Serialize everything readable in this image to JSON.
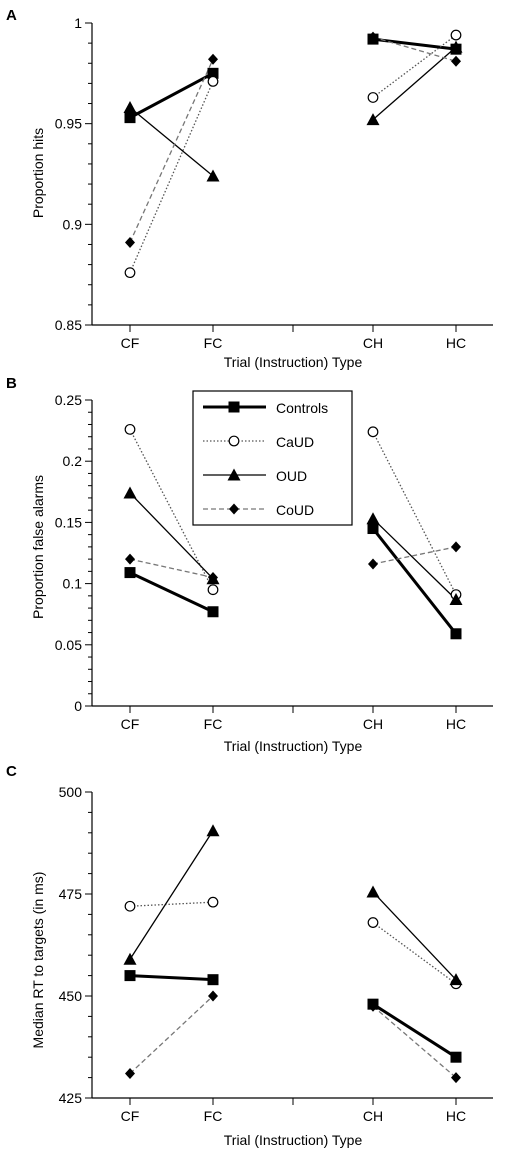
{
  "chart_data": [
    {
      "type": "line",
      "panel_label": "A",
      "categories": [
        "CF",
        "FC",
        "CH",
        "HC"
      ],
      "segments": [
        [
          "CF",
          "FC"
        ],
        [
          "CH",
          "HC"
        ]
      ],
      "xlabel": "Trial (Instruction) Type",
      "ylabel": "Proportion hits",
      "ylim": [
        0.85,
        1.0
      ],
      "yticks": [
        "0.85",
        "0.9",
        "0.95",
        "1"
      ],
      "grid": false,
      "series": [
        {
          "name": "Controls",
          "values": [
            0.953,
            0.975,
            0.992,
            0.987
          ]
        },
        {
          "name": "CaUD",
          "values": [
            0.876,
            0.971,
            0.963,
            0.994
          ]
        },
        {
          "name": "OUD",
          "values": [
            0.958,
            0.924,
            0.952,
            0.988
          ]
        },
        {
          "name": "CoUD",
          "values": [
            0.891,
            0.982,
            0.993,
            0.981
          ]
        }
      ]
    },
    {
      "type": "line",
      "panel_label": "B",
      "categories": [
        "CF",
        "FC",
        "CH",
        "HC"
      ],
      "segments": [
        [
          "CF",
          "FC"
        ],
        [
          "CH",
          "HC"
        ]
      ],
      "xlabel": "Trial (Instruction) Type",
      "ylabel": "Proportion false alarms",
      "ylim": [
        0,
        0.25
      ],
      "yticks": [
        "0",
        "0.05",
        "0.1",
        "0.15",
        "0.2",
        "0.25"
      ],
      "grid": false,
      "legend": "top-center",
      "series": [
        {
          "name": "Controls",
          "values": [
            0.109,
            0.077,
            0.145,
            0.059
          ]
        },
        {
          "name": "CaUD",
          "values": [
            0.226,
            0.095,
            0.224,
            0.091
          ]
        },
        {
          "name": "OUD",
          "values": [
            0.174,
            0.104,
            0.153,
            0.087
          ]
        },
        {
          "name": "CoUD",
          "values": [
            0.12,
            0.105,
            0.116,
            0.13
          ]
        }
      ]
    },
    {
      "type": "line",
      "panel_label": "C",
      "categories": [
        "CF",
        "FC",
        "CH",
        "HC"
      ],
      "segments": [
        [
          "CF",
          "FC"
        ],
        [
          "CH",
          "HC"
        ]
      ],
      "xlabel": "Trial (Instruction) Type",
      "ylabel": "Median RT to targets (in ms)",
      "ylim": [
        425,
        500
      ],
      "yticks": [
        "425",
        "450",
        "475",
        "500"
      ],
      "grid": false,
      "series": [
        {
          "name": "Controls",
          "values": [
            455,
            454,
            448,
            435
          ]
        },
        {
          "name": "CaUD",
          "values": [
            472,
            473,
            468,
            453
          ]
        },
        {
          "name": "OUD",
          "values": [
            459,
            490.5,
            475.5,
            454
          ]
        },
        {
          "name": "CoUD",
          "values": [
            431,
            450,
            447.5,
            430
          ]
        }
      ]
    }
  ],
  "legend": {
    "entries": [
      "Controls",
      "CaUD",
      "OUD",
      "CoUD"
    ]
  },
  "series_styles": {
    "Controls": {
      "color": "#000000",
      "marker": "square",
      "line": "solid-thick"
    },
    "CaUD": {
      "color": "#555555",
      "marker": "circle-open",
      "line": "dotted"
    },
    "OUD": {
      "color": "#000000",
      "marker": "triangle",
      "line": "solid-thin"
    },
    "CoUD": {
      "color": "#777777",
      "marker": "diamond",
      "line": "dashed"
    }
  }
}
